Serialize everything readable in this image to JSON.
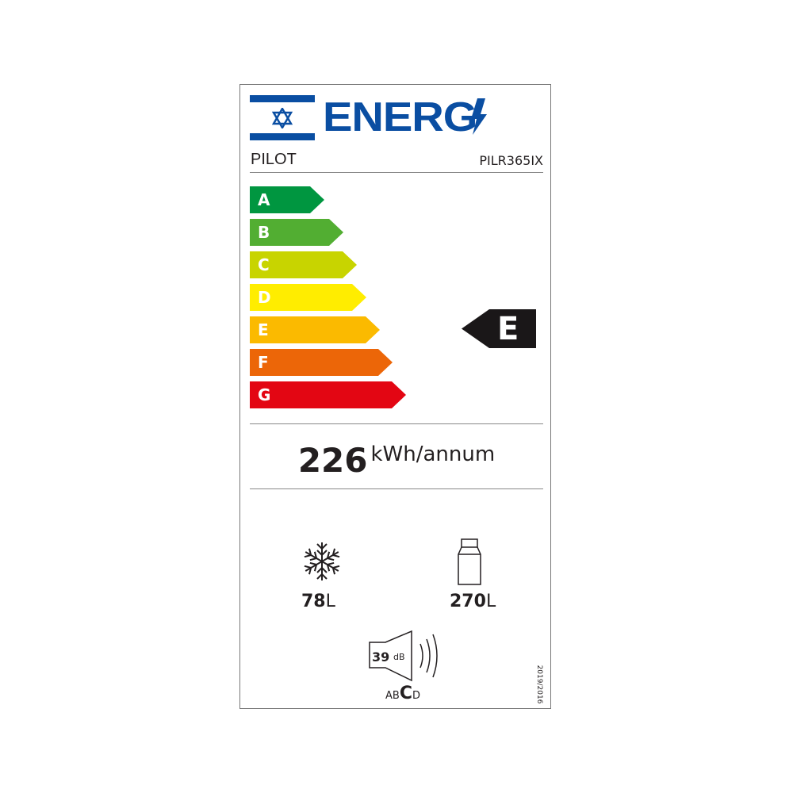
{
  "header": {
    "logo_text": "ENERG",
    "brand": "PILOT",
    "model": "PILR365IX"
  },
  "scale": {
    "classes": [
      {
        "letter": "A",
        "color": "#009640"
      },
      {
        "letter": "B",
        "color": "#52ae32"
      },
      {
        "letter": "C",
        "color": "#c8d400"
      },
      {
        "letter": "D",
        "color": "#ffed00"
      },
      {
        "letter": "E",
        "color": "#fbba00"
      },
      {
        "letter": "F",
        "color": "#ec6608"
      },
      {
        "letter": "G",
        "color": "#e30613"
      }
    ],
    "rating": "E"
  },
  "consumption": {
    "value": "226",
    "unit": "kWh/annum"
  },
  "freezer": {
    "icon": "snowflake-icon",
    "value": "78",
    "unit": "L"
  },
  "fridge": {
    "icon": "bottle-icon",
    "value": "270",
    "unit": "L"
  },
  "noise": {
    "value": "39",
    "unit": "dB",
    "classes": [
      "A",
      "B",
      "C",
      "D"
    ],
    "selected": "C"
  },
  "regulation": "2019/2016"
}
